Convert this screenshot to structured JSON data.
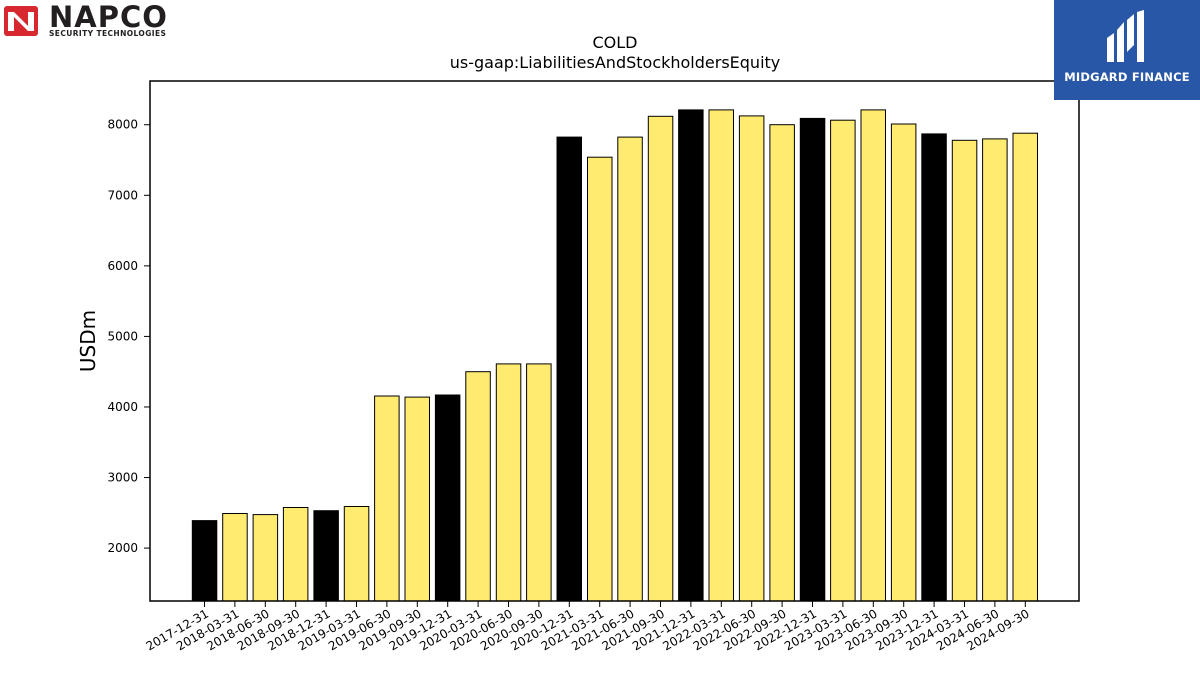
{
  "logos": {
    "left": {
      "name": "NAPCO",
      "subtitle": "SECURITY TECHNOLOGIES"
    },
    "right": {
      "name": "MIDGARD FINANCE",
      "background": "#2957a8"
    }
  },
  "chart_data": {
    "type": "bar",
    "title": "COLD",
    "subtitle": "us-gaap:LiabilitiesAndStockholdersEquity",
    "xlabel": "",
    "ylabel": "USDm",
    "ylim": [
      1250,
      8620
    ],
    "yticks": [
      2000,
      3000,
      4000,
      5000,
      6000,
      7000,
      8000
    ],
    "grid": false,
    "colors": {
      "annual": "#000000",
      "quarterly": "#ffeb70",
      "edge": "#000000"
    },
    "categories": [
      "2017-12-31",
      "2018-03-31",
      "2018-06-30",
      "2018-09-30",
      "2018-12-31",
      "2019-03-31",
      "2019-06-30",
      "2019-09-30",
      "2019-12-31",
      "2020-03-31",
      "2020-06-30",
      "2020-09-30",
      "2020-12-31",
      "2021-03-31",
      "2021-06-30",
      "2021-09-30",
      "2021-12-31",
      "2022-03-31",
      "2022-06-30",
      "2022-09-30",
      "2022-12-31",
      "2023-03-31",
      "2023-06-30",
      "2023-09-30",
      "2023-12-31",
      "2024-03-31",
      "2024-06-30",
      "2024-09-30"
    ],
    "values": [
      2390,
      2490,
      2475,
      2575,
      2530,
      2590,
      4155,
      4140,
      4170,
      4500,
      4610,
      4610,
      7825,
      7540,
      7825,
      8120,
      8210,
      8210,
      8125,
      8000,
      8090,
      8065,
      8210,
      8010,
      7870,
      7780,
      7800,
      7880
    ],
    "highlight": [
      true,
      false,
      false,
      false,
      true,
      false,
      false,
      false,
      true,
      false,
      false,
      false,
      true,
      false,
      false,
      false,
      true,
      false,
      false,
      false,
      true,
      false,
      false,
      false,
      true,
      false,
      false,
      false
    ]
  }
}
